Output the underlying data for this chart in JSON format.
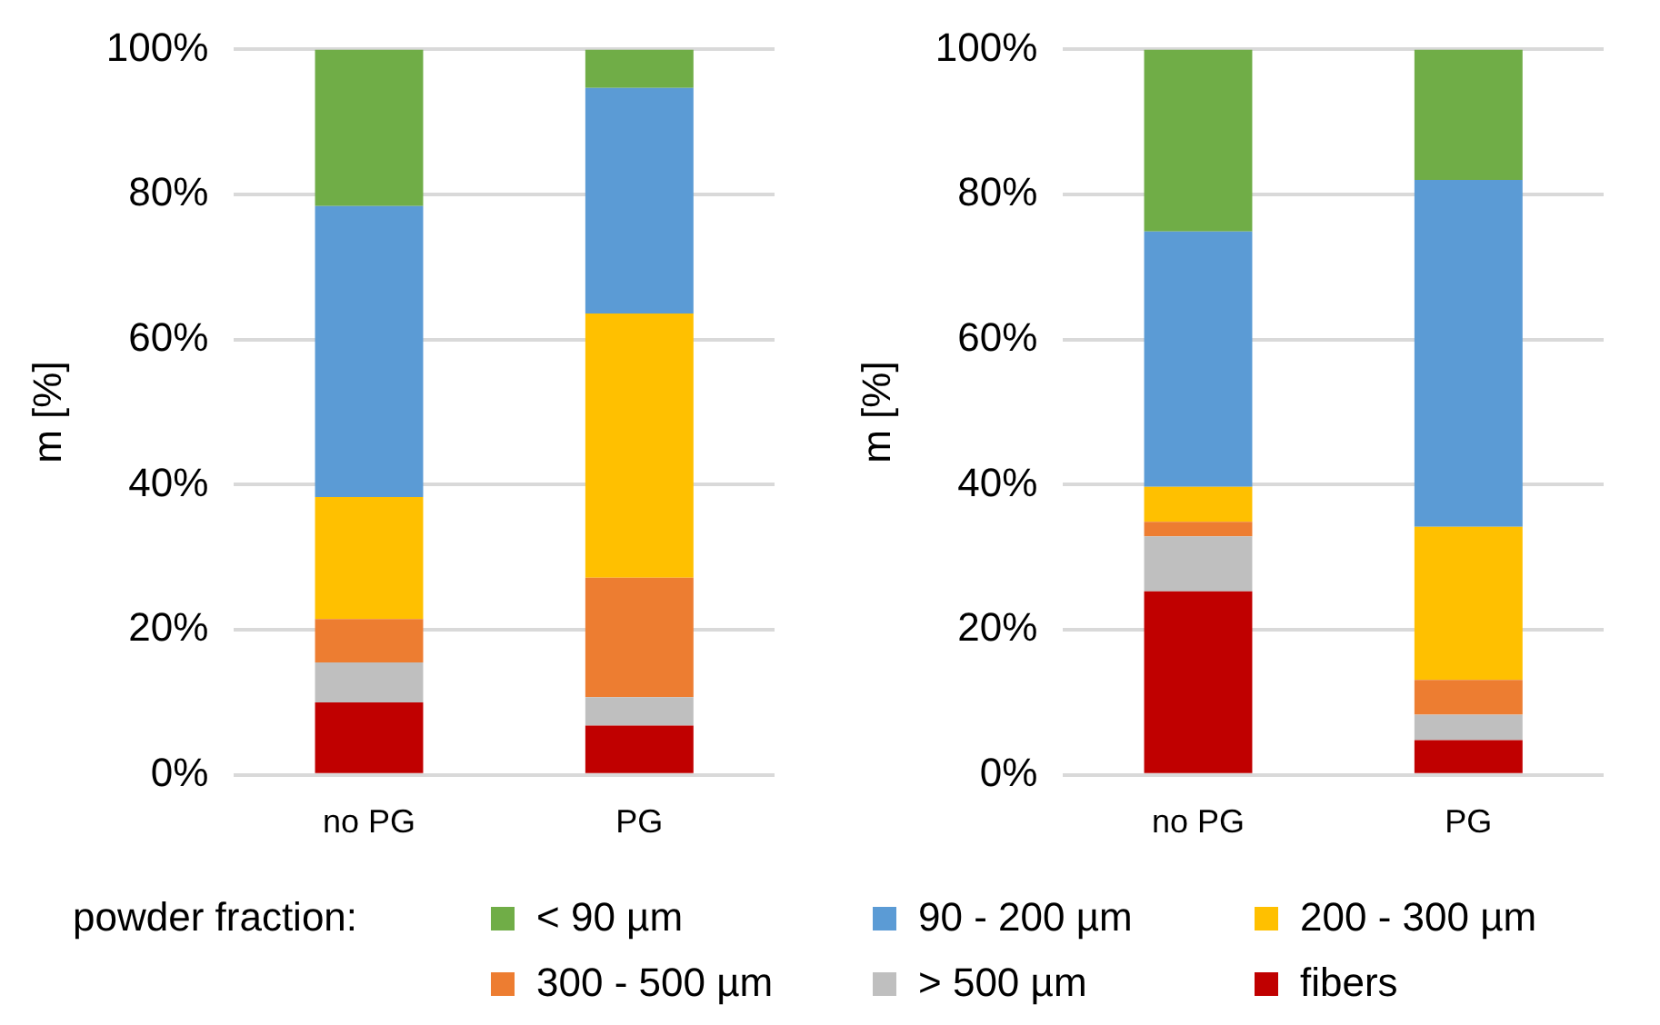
{
  "chart_data": [
    {
      "type": "bar",
      "stacked": true,
      "ylabel": "m [%]",
      "categories": [
        "no PG",
        "PG"
      ],
      "ylim": [
        0,
        100
      ],
      "yticks": [
        {
          "value": 0,
          "label": "0%"
        },
        {
          "value": 20,
          "label": "20%"
        },
        {
          "value": 40,
          "label": "40%"
        },
        {
          "value": 60,
          "label": "60%"
        },
        {
          "value": 80,
          "label": "80%"
        },
        {
          "value": 100,
          "label": "100%"
        }
      ],
      "grid": "y",
      "legend": "bottom",
      "legend_title": "powder fraction:",
      "series": [
        {
          "name": "fibers",
          "color": "#c00000",
          "values": [
            10.0,
            6.8
          ]
        },
        {
          "name": "> 500 µm",
          "color": "#bfbfbf",
          "values": [
            5.5,
            3.9
          ]
        },
        {
          "name": "300 - 500 µm",
          "color": "#ed7d31",
          "values": [
            6.0,
            16.5
          ]
        },
        {
          "name": "200 - 300 µm",
          "color": "#ffc000",
          "values": [
            16.8,
            36.4
          ]
        },
        {
          "name": "90 - 200 µm",
          "color": "#5b9bd5",
          "values": [
            40.1,
            31.1
          ]
        },
        {
          "name": "< 90 µm",
          "color": "#70ad47",
          "values": [
            21.6,
            5.3
          ]
        }
      ]
    },
    {
      "type": "bar",
      "stacked": true,
      "ylabel": "m [%]",
      "categories": [
        "no PG",
        "PG"
      ],
      "ylim": [
        0,
        100
      ],
      "yticks": [
        {
          "value": 0,
          "label": "0%"
        },
        {
          "value": 20,
          "label": "20%"
        },
        {
          "value": 40,
          "label": "40%"
        },
        {
          "value": 60,
          "label": "60%"
        },
        {
          "value": 80,
          "label": "80%"
        },
        {
          "value": 100,
          "label": "100%"
        }
      ],
      "grid": "y",
      "series": [
        {
          "color": "#c00000",
          "values": [
            25.3,
            4.8
          ]
        },
        {
          "color": "#bfbfbf",
          "values": [
            7.6,
            3.5
          ]
        },
        {
          "color": "#ed7d31",
          "values": [
            2.0,
            4.8
          ]
        },
        {
          "color": "#ffc000",
          "values": [
            4.8,
            21.1
          ]
        },
        {
          "color": "#5b9bd5",
          "values": [
            35.2,
            47.8
          ]
        },
        {
          "color": "#70ad47",
          "values": [
            25.1,
            18.0
          ]
        }
      ]
    }
  ]
}
